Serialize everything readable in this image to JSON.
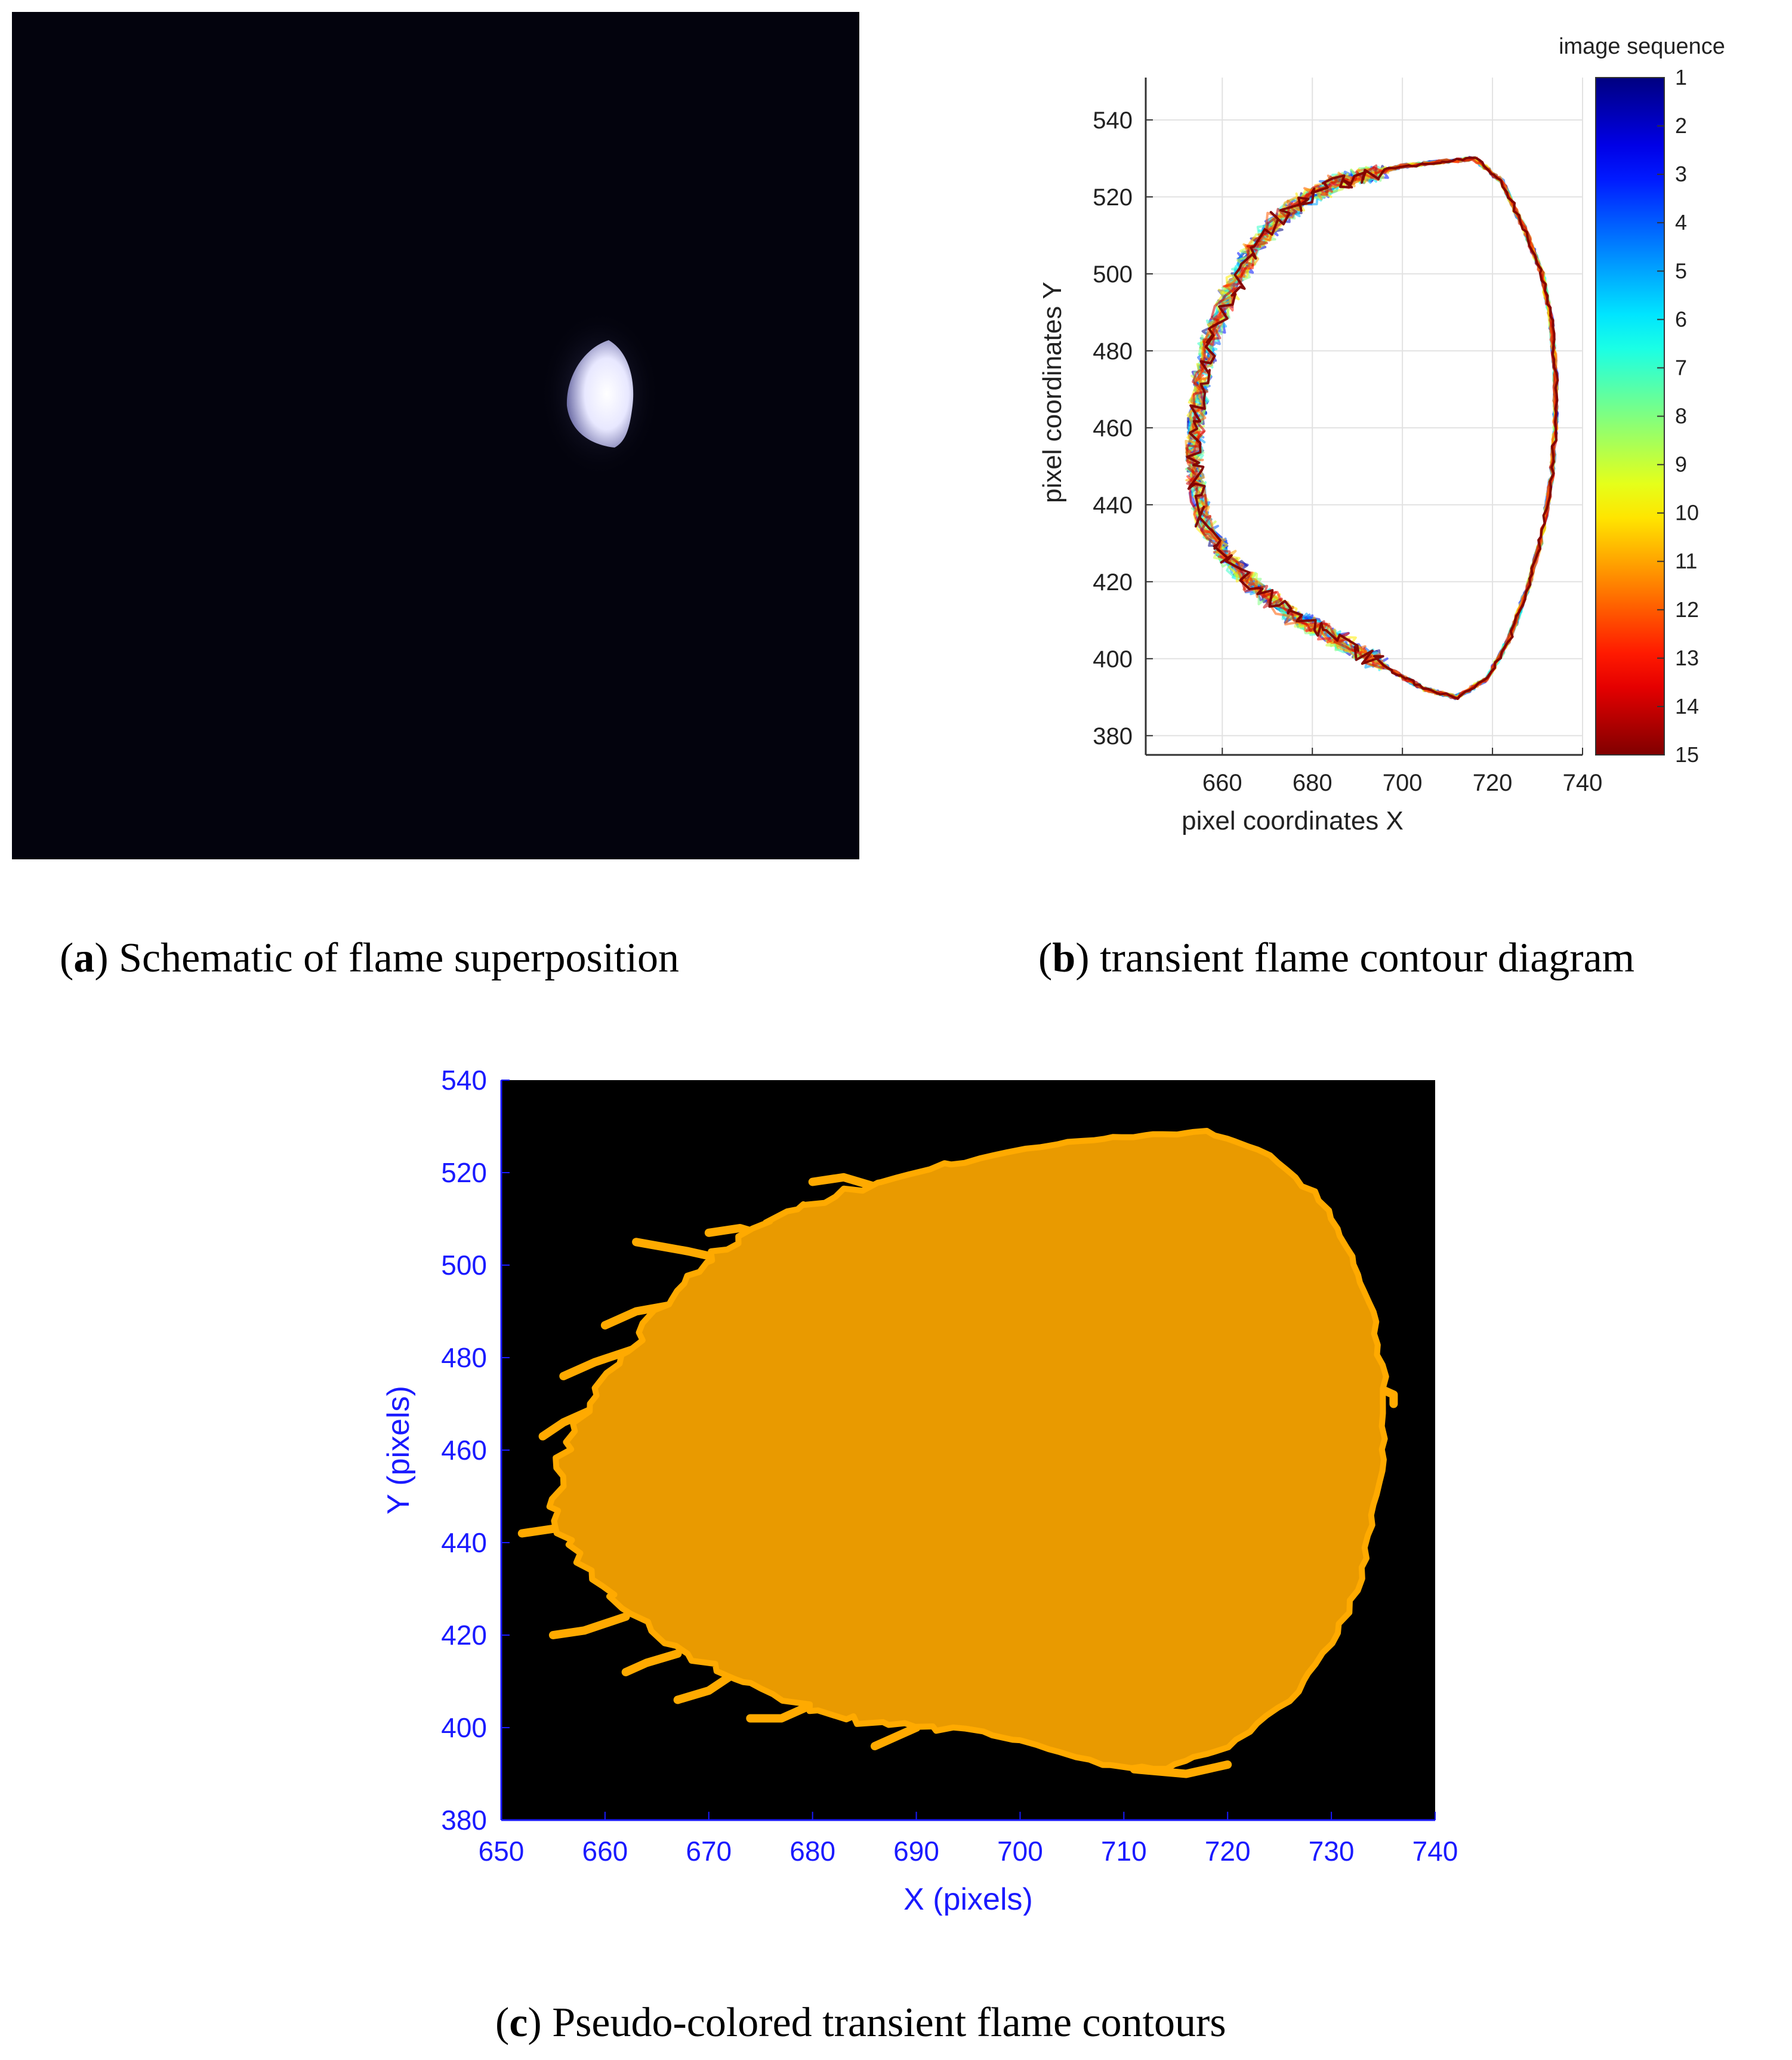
{
  "colors": {
    "background": "#ffffff",
    "photo_background": "#03030d",
    "flame_glow": "#f4f4ff",
    "contour_fill": "#e99a00",
    "contour_edge": "#ffaa00",
    "axis_blue": "#1a1aff",
    "plot_c_background": "#000000"
  },
  "panel_a": {
    "caption_letter": "a",
    "caption_text": "Schematic of flame superposition"
  },
  "panel_b": {
    "caption_letter": "b",
    "caption_text": "transient flame contour diagram"
  },
  "panel_c": {
    "caption_letter": "c",
    "caption_text": "Pseudo-colored transient flame contours"
  },
  "chart_data": [
    {
      "id": "b",
      "type": "line",
      "title": "",
      "xlabel": "pixel coordinates X",
      "ylabel": "pixel coordinates Y",
      "xlim": [
        643,
        740
      ],
      "ylim": [
        375,
        551
      ],
      "xticks": [
        660,
        680,
        700,
        720,
        740
      ],
      "yticks": [
        380,
        400,
        420,
        440,
        460,
        480,
        500,
        520,
        540
      ],
      "grid": true,
      "colorbar": {
        "label": "image sequence",
        "min": 1,
        "max": 15,
        "ticks": [
          1,
          2,
          3,
          4,
          5,
          6,
          7,
          8,
          9,
          10,
          11,
          12,
          13,
          14,
          15
        ],
        "colormap": "jet"
      },
      "series_count": 15,
      "base_contour": {
        "x": [
          716,
          722,
          727,
          731,
          733,
          734,
          734,
          733,
          731,
          728,
          724,
          719,
          712,
          705,
          699,
          692,
          684,
          676,
          668,
          661,
          656,
          654,
          654,
          655,
          657,
          661,
          666,
          672,
          679,
          686,
          693,
          700,
          708,
          716
        ],
        "y": [
          530,
          524,
          512,
          500,
          488,
          474,
          460,
          446,
          432,
          419,
          406,
          395,
          390,
          392,
          396,
          401,
          406,
          411,
          418,
          426,
          435,
          446,
          458,
          470,
          482,
          494,
          505,
          514,
          520,
          524,
          526,
          528,
          529,
          530
        ]
      }
    },
    {
      "id": "c",
      "type": "area",
      "title": "",
      "xlabel": "X (pixels)",
      "ylabel": "Y (pixels)",
      "xlim": [
        650,
        740
      ],
      "ylim": [
        380,
        540
      ],
      "xticks": [
        650,
        660,
        670,
        680,
        690,
        700,
        710,
        720,
        730,
        740
      ],
      "yticks": [
        380,
        400,
        420,
        440,
        460,
        480,
        500,
        520,
        540
      ],
      "grid": false,
      "contour": {
        "x": [
          718,
          724,
          729,
          732,
          734,
          735,
          735,
          734,
          733,
          730,
          726,
          720,
          714,
          708,
          700,
          692,
          685,
          679,
          672,
          666,
          661,
          657,
          655,
          656,
          659,
          663,
          667,
          671,
          676,
          682,
          690,
          698,
          706,
          712,
          718
        ],
        "y": [
          529,
          524,
          514,
          502,
          490,
          476,
          460,
          446,
          432,
          418,
          406,
          396,
          391,
          392,
          397,
          400,
          401,
          405,
          411,
          419,
          428,
          437,
          448,
          460,
          472,
          484,
          495,
          503,
          510,
          515,
          520,
          524,
          527,
          528,
          529
        ]
      },
      "fringes": [
        {
          "x": [
            660,
            656,
            654
          ],
          "y": [
            470,
            466,
            463
          ]
        },
        {
          "x": [
            659,
            655,
            652
          ],
          "y": [
            446,
            443,
            442
          ]
        },
        {
          "x": [
            663,
            659,
            656
          ],
          "y": [
            482,
            479,
            476
          ]
        },
        {
          "x": [
            668,
            663,
            660
          ],
          "y": [
            492,
            490,
            487
          ]
        },
        {
          "x": [
            672,
            668,
            663
          ],
          "y": [
            501,
            503,
            505
          ]
        },
        {
          "x": [
            676,
            673,
            670
          ],
          "y": [
            506,
            508,
            507
          ]
        },
        {
          "x": [
            662,
            658,
            655
          ],
          "y": [
            424,
            421,
            420
          ]
        },
        {
          "x": [
            667,
            664,
            662
          ],
          "y": [
            416,
            414,
            412
          ]
        },
        {
          "x": [
            672,
            670,
            667
          ],
          "y": [
            411,
            408,
            406
          ]
        },
        {
          "x": [
            680,
            677,
            674
          ],
          "y": [
            405,
            402,
            402
          ]
        },
        {
          "x": [
            690,
            688,
            686
          ],
          "y": [
            400,
            398,
            396
          ]
        },
        {
          "x": [
            711,
            716,
            720
          ],
          "y": [
            391,
            390,
            392
          ]
        },
        {
          "x": [
            734,
            736,
            736
          ],
          "y": [
            474,
            472,
            470
          ]
        },
        {
          "x": [
            686,
            683,
            680
          ],
          "y": [
            517,
            519,
            518
          ]
        }
      ]
    }
  ]
}
